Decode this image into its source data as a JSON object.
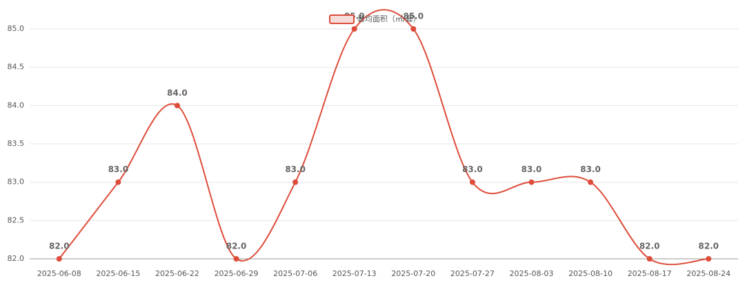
{
  "chart_data": {
    "type": "line",
    "categories": [
      "2025-06-08",
      "2025-06-15",
      "2025-06-22",
      "2025-06-29",
      "2025-07-06",
      "2025-07-13",
      "2025-07-20",
      "2025-07-27",
      "2025-08-03",
      "2025-08-10",
      "2025-08-17",
      "2025-08-24"
    ],
    "series": [
      {
        "name": "套均面积（㎡/套）",
        "color": "#dd4b39",
        "values": [
          82,
          83,
          84,
          82,
          83,
          85,
          85,
          83,
          83,
          83,
          82,
          82
        ],
        "value_labels": [
          "82.0",
          "83.0",
          "84.0",
          "82.0",
          "83.0",
          "85.0",
          "85.0",
          "83.0",
          "83.0",
          "83.0",
          "82.0",
          "82.0"
        ]
      }
    ],
    "ylim": [
      82,
      85
    ],
    "yticks": [
      {
        "value": 82,
        "label": "82.0"
      },
      {
        "value": 82.5,
        "label": "82.5"
      },
      {
        "value": 83,
        "label": "83.0"
      },
      {
        "value": 83.5,
        "label": "83.5"
      },
      {
        "value": 84,
        "label": "84.0"
      },
      {
        "value": 84.5,
        "label": "84.5"
      },
      {
        "value": 85,
        "label": "85.0"
      }
    ],
    "grid": true,
    "smooth": true,
    "legend": "top"
  }
}
